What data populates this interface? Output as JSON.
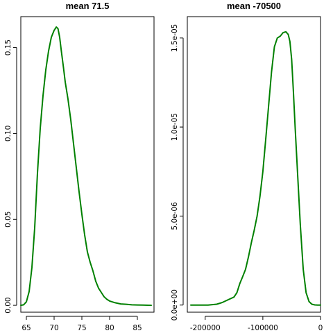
{
  "chart_data": [
    {
      "type": "line",
      "title": "mean 71.5",
      "xlabel": "",
      "ylabel": "",
      "xlim": [
        64.0,
        88.0
      ],
      "ylim": [
        -0.004,
        0.168
      ],
      "x_ticks": [
        65,
        70,
        75,
        80,
        85
      ],
      "x_tick_labels": [
        "65",
        "70",
        "75",
        "80",
        "85"
      ],
      "y_ticks": [
        0.0,
        0.05,
        0.1,
        0.15
      ],
      "y_tick_labels": [
        "0.00",
        "0.05",
        "0.10",
        "0.15"
      ],
      "color": "#008000",
      "series": [
        {
          "x": [
            64.0,
            64.5,
            65.0,
            65.5,
            66.0,
            66.5,
            67.0,
            67.5,
            68.0,
            68.5,
            69.0,
            69.5,
            70.0,
            70.4,
            70.7,
            71.0,
            71.3,
            71.7,
            72.0,
            72.5,
            73.0,
            73.5,
            74.0,
            74.5,
            75.0,
            75.5,
            76.0,
            76.5,
            77.0,
            77.5,
            78.0,
            78.5,
            79.0,
            79.5,
            80.0,
            81.0,
            82.0,
            83.0,
            84.0,
            85.0,
            86.0,
            87.5
          ],
          "y": [
            0.0,
            0.0003,
            0.002,
            0.008,
            0.022,
            0.045,
            0.077,
            0.103,
            0.122,
            0.137,
            0.148,
            0.156,
            0.16,
            0.162,
            0.161,
            0.156,
            0.148,
            0.138,
            0.13,
            0.12,
            0.108,
            0.094,
            0.08,
            0.066,
            0.053,
            0.041,
            0.031,
            0.025,
            0.02,
            0.014,
            0.01,
            0.0075,
            0.005,
            0.0035,
            0.0025,
            0.0015,
            0.0008,
            0.0006,
            0.0003,
            0.0002,
            0.0001,
            0.0
          ]
        }
      ]
    },
    {
      "type": "line",
      "title": "mean -70500",
      "xlabel": "",
      "ylabel": "",
      "xlim": [
        -231000,
        0
      ],
      "ylim": [
        -4e-07,
        1.62e-05
      ],
      "x_ticks": [
        -200000,
        -100000,
        0
      ],
      "x_tick_labels": [
        "-200000",
        "-100000",
        "0"
      ],
      "y_ticks": [
        0.0,
        5e-06,
        1e-05,
        1.5e-05
      ],
      "y_tick_labels": [
        "0.0e+00",
        "5.0e-06",
        "1.0e-05",
        "1.5e-05"
      ],
      "color": "#008000",
      "series": [
        {
          "x": [
            -225000,
            -210000,
            -195000,
            -180000,
            -170000,
            -160000,
            -150000,
            -145000,
            -140000,
            -135000,
            -130000,
            -125000,
            -120000,
            -115000,
            -110000,
            -105000,
            -100000,
            -95000,
            -90000,
            -85000,
            -80000,
            -75000,
            -70000,
            -65000,
            -60000,
            -56000,
            -53000,
            -50000,
            -47000,
            -44000,
            -40000,
            -35000,
            -30000,
            -25000,
            -20000,
            -15000,
            -10000,
            -5000,
            0
          ],
          "y": [
            0.0,
            0.0,
            0.0,
            5e-08,
            1.5e-07,
            3e-07,
            4.5e-07,
            7e-07,
            1.2e-06,
            1.6e-06,
            2e-06,
            2.7e-06,
            3.5e-06,
            4.2e-06,
            5e-06,
            6.1e-06,
            7.5e-06,
            9.3e-06,
            1.12e-05,
            1.31e-05,
            1.45e-05,
            1.5e-05,
            1.51e-05,
            1.53e-05,
            1.535e-05,
            1.52e-05,
            1.48e-05,
            1.38e-05,
            1.2e-05,
            1e-05,
            7.5e-06,
            4.5e-06,
            2e-06,
            7e-07,
            2e-07,
            5e-08,
            1e-08,
            0.0,
            0.0
          ]
        }
      ]
    }
  ]
}
